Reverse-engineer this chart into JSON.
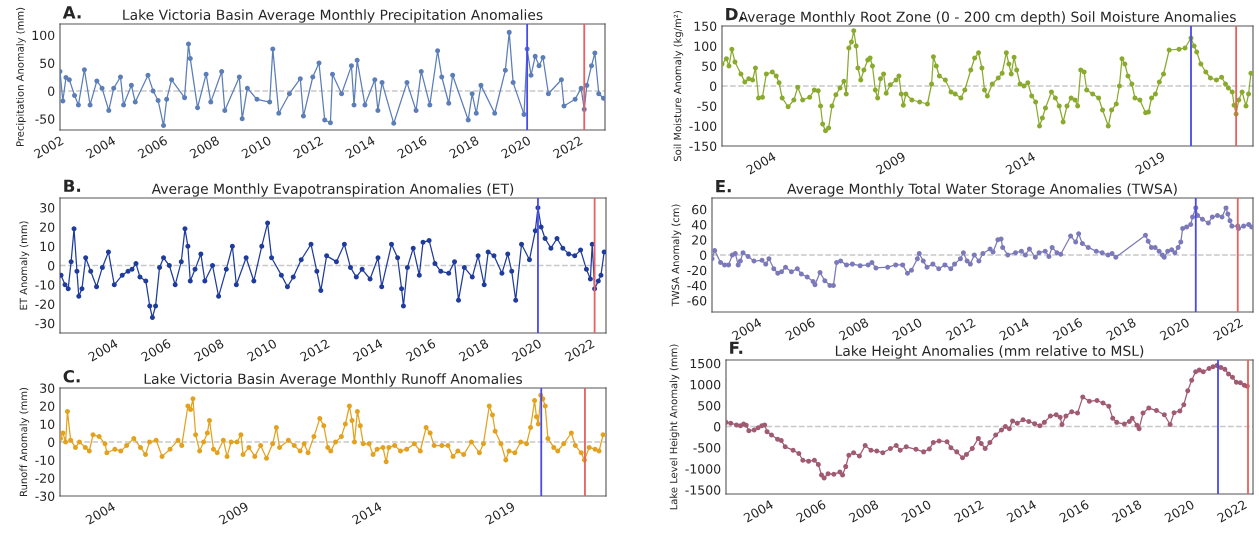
{
  "chart_data": [
    {
      "type": "line",
      "title": "Lake Victoria Basin Average Monthly Precipitation Anomalies",
      "ylabel": "Precipitation Anomaly (mm)",
      "annotations": [
        "A."
      ],
      "marker": "circle",
      "line_style": "solid",
      "xlim": [
        2002,
        2023
      ],
      "xticks": [
        2002,
        2004,
        2006,
        2008,
        2010,
        2012,
        2014,
        2016,
        2018,
        2020,
        2022
      ],
      "ylim": [
        -70,
        120
      ],
      "yticks": [
        -50,
        0,
        50,
        100
      ],
      "x": [
        2002.0,
        2002.11,
        2002.23,
        2002.36,
        2002.56,
        2002.71,
        2002.94,
        2003.16,
        2003.42,
        2003.62,
        2003.88,
        2004.07,
        2004.33,
        2004.45,
        2004.75,
        2004.9,
        2005.39,
        2005.59,
        2005.78,
        2005.99,
        2006.11,
        2006.3,
        2006.8,
        2006.95,
        2007.02,
        2007.3,
        2007.63,
        2007.81,
        2008.23,
        2008.35,
        2008.91,
        2009.02,
        2009.22,
        2009.59,
        2010.08,
        2010.2,
        2010.43,
        2010.84,
        2011.26,
        2011.38,
        2011.74,
        2011.98,
        2012.2,
        2012.42,
        2012.5,
        2012.85,
        2013.23,
        2013.33,
        2013.45,
        2013.75,
        2014.13,
        2014.25,
        2014.41,
        2014.86,
        2015.37,
        2015.72,
        2015.92,
        2016.25,
        2016.55,
        2016.71,
        2016.98,
        2017.13,
        2017.73,
        2017.88,
        2018.04,
        2018.22,
        2018.75,
        2019.16,
        2019.31,
        2019.46,
        2019.88,
        2020.0,
        2020.15,
        2020.31,
        2020.46,
        2020.61,
        2020.82,
        2021.32,
        2021.42,
        2021.85,
        2022.08,
        2022.2,
        2022.3,
        2022.48,
        2022.61,
        2022.76,
        2022.94
      ],
      "series": [
        {
          "color": "#5b7db8",
          "values": [
            35,
            -18,
            24,
            20,
            -8,
            -25,
            38,
            -25,
            18,
            5,
            -35,
            5,
            25,
            -25,
            10,
            -20,
            28,
            0,
            -17,
            -62,
            -15,
            20,
            -12,
            84,
            58,
            -30,
            30,
            -20,
            35,
            -35,
            25,
            -50,
            5,
            -15,
            -20,
            75,
            -40,
            -5,
            22,
            -45,
            25,
            50,
            -52,
            -57,
            30,
            -5,
            45,
            -25,
            55,
            -25,
            20,
            -35,
            15,
            -58,
            15,
            -35,
            35,
            -25,
            72,
            25,
            -22,
            28,
            -52,
            -5,
            -40,
            10,
            -40,
            37,
            105,
            15,
            -42,
            75,
            28,
            62,
            45,
            60,
            -5,
            20,
            -27,
            -15,
            5,
            -33,
            10,
            45,
            68,
            -5,
            -13
          ]
        }
      ],
      "ref_lines": [
        {
          "axis": "y",
          "value": 0,
          "color": "#c8c8c8",
          "line_style": "dashed"
        },
        {
          "axis": "x",
          "value": 2020.0,
          "color": "#4a4ae8"
        },
        {
          "axis": "x",
          "value": 2022.2,
          "color": "#e86060"
        }
      ]
    },
    {
      "type": "line",
      "title": "Average Monthly Evapotranspiration Anomalies (ET)",
      "ylabel": "ET Anomaly (mm)",
      "annotations": [
        "B."
      ],
      "marker": "circle",
      "line_style": "solid",
      "xlim": [
        2001.95,
        2022.57
      ],
      "xticks": [
        2004,
        2006,
        2008,
        2010,
        2012,
        2014,
        2016,
        2018,
        2020,
        2022
      ],
      "ylim": [
        -35,
        35
      ],
      "yticks": [
        -30,
        -20,
        -10,
        0,
        10,
        20,
        30
      ],
      "x": [
        2001.99,
        2002.14,
        2002.26,
        2002.37,
        2002.48,
        2002.59,
        2002.66,
        2002.78,
        2002.92,
        2003.11,
        2003.33,
        2003.55,
        2003.78,
        2004.0,
        2004.3,
        2004.52,
        2004.67,
        2004.82,
        2004.97,
        2005.19,
        2005.34,
        2005.44,
        2005.56,
        2005.71,
        2005.86,
        2006.08,
        2006.3,
        2006.53,
        2006.67,
        2006.78,
        2006.87,
        2007.05,
        2007.27,
        2007.42,
        2007.71,
        2007.94,
        2008.23,
        2008.46,
        2008.61,
        2008.98,
        2009.27,
        2009.57,
        2009.79,
        2009.94,
        2010.31,
        2010.54,
        2010.76,
        2011.06,
        2011.43,
        2011.65,
        2011.8,
        2012.02,
        2012.39,
        2012.69,
        2012.92,
        2013.14,
        2013.36,
        2013.66,
        2013.96,
        2014.1,
        2014.47,
        2014.7,
        2014.85,
        2014.92,
        2015.07,
        2015.29,
        2015.52,
        2015.66,
        2015.89,
        2016.11,
        2016.33,
        2016.63,
        2016.85,
        2017.0,
        2017.22,
        2017.52,
        2017.74,
        2017.97,
        2018.12,
        2018.34,
        2018.64,
        2018.86,
        2019.01,
        2019.16,
        2019.38,
        2019.68,
        2019.9,
        2020.0,
        2020.12,
        2020.27,
        2020.49,
        2020.72,
        2020.94,
        2021.16,
        2021.39,
        2021.61,
        2021.83,
        2021.98,
        2022.05,
        2022.14,
        2022.28,
        2022.38,
        2022.5
      ],
      "series": [
        {
          "color": "#1f3c9c",
          "values": [
            -5,
            -10,
            -12,
            2,
            19,
            -3,
            -16,
            -12,
            4,
            -3,
            -11,
            -1,
            7,
            -10,
            -5,
            -3,
            -2,
            1,
            -6,
            -8,
            -21,
            -27,
            -21,
            -1,
            4,
            0,
            -10,
            2,
            19,
            10,
            -8,
            -2,
            6,
            -8,
            0,
            -16,
            -2,
            10,
            -10,
            4,
            -8,
            10,
            22,
            4,
            -5,
            -11,
            -6,
            3,
            11,
            -3,
            -13,
            5,
            2,
            11,
            -1,
            -6,
            -2,
            -7,
            4,
            -11,
            11,
            4,
            -12,
            -21,
            -1,
            9,
            -5,
            12,
            13,
            1,
            -3,
            -4,
            2,
            -18,
            -1,
            -6,
            5,
            -10,
            7,
            5,
            -4,
            6,
            -3,
            -18,
            11,
            3,
            18,
            30,
            20,
            14,
            9,
            14,
            9,
            6,
            5,
            8,
            -2,
            -7,
            11,
            -12,
            -8,
            -5,
            7
          ]
        }
      ],
      "ref_lines": [
        {
          "axis": "y",
          "value": 0,
          "color": "#c8c8c8",
          "line_style": "dashed"
        },
        {
          "axis": "x",
          "value": 2020.0,
          "color": "#4a4ae8"
        },
        {
          "axis": "x",
          "value": 2022.14,
          "color": "#e86060"
        }
      ]
    },
    {
      "type": "line",
      "title": "Lake Victoria Basin Average Monthly Runoff Anomalies",
      "ylabel": "Runoff Anomaly (mm)",
      "annotations": [
        "C."
      ],
      "marker": "circle",
      "line_style": "solid",
      "xlim": [
        2002.06,
        2022.55
      ],
      "xticks": [
        2004,
        2009,
        2014,
        2019
      ],
      "ylim": [
        -30,
        30
      ],
      "yticks": [
        -30,
        -20,
        -10,
        0,
        10,
        20,
        30
      ],
      "x": [
        2002.08,
        2002.17,
        2002.27,
        2002.34,
        2002.46,
        2002.64,
        2002.79,
        2003.01,
        2003.16,
        2003.3,
        2003.53,
        2003.75,
        2003.82,
        2004.12,
        2004.34,
        2004.56,
        2004.83,
        2005.08,
        2005.27,
        2005.42,
        2005.67,
        2005.89,
        2006.19,
        2006.49,
        2006.63,
        2006.86,
        2006.96,
        2007.05,
        2007.15,
        2007.3,
        2007.45,
        2007.59,
        2007.67,
        2007.82,
        2007.96,
        2008.19,
        2008.33,
        2008.48,
        2008.7,
        2008.85,
        2008.93,
        2009.15,
        2009.37,
        2009.59,
        2009.81,
        2010.04,
        2010.18,
        2010.3,
        2010.63,
        2010.85,
        2011.07,
        2011.22,
        2011.37,
        2011.59,
        2011.81,
        2011.96,
        2012.11,
        2012.22,
        2012.4,
        2012.62,
        2012.77,
        2012.92,
        2013.02,
        2013.11,
        2013.22,
        2013.33,
        2013.44,
        2013.66,
        2013.81,
        2013.96,
        2014.18,
        2014.3,
        2014.4,
        2014.62,
        2014.84,
        2015.07,
        2015.36,
        2015.58,
        2015.8,
        2015.95,
        2016.1,
        2016.39,
        2016.62,
        2016.81,
        2016.99,
        2017.21,
        2017.5,
        2017.8,
        2017.95,
        2018.17,
        2018.29,
        2018.39,
        2018.61,
        2018.79,
        2018.91,
        2019.13,
        2019.35,
        2019.57,
        2019.72,
        2019.87,
        2019.94,
        2020.01,
        2020.1,
        2020.18,
        2020.27,
        2020.37,
        2020.59,
        2020.74,
        2020.96,
        2021.25,
        2021.4,
        2021.62,
        2021.74,
        2021.92,
        2022.14,
        2022.29,
        2022.44
      ],
      "series": [
        {
          "color": "#e3a21e",
          "values": [
            2,
            5,
            0,
            17,
            1,
            -3,
            0,
            -3,
            -5,
            4,
            3,
            -1,
            -6,
            -4,
            -5,
            -2,
            2,
            -3,
            -7,
            0,
            1,
            -8,
            -4,
            1,
            -2,
            20,
            18,
            24,
            4,
            -5,
            0,
            5,
            12,
            -4,
            -6,
            1,
            -8,
            0,
            0,
            4,
            -7,
            -3,
            -8,
            -2,
            -9,
            -1,
            8,
            -3,
            1,
            -2,
            -5,
            -1,
            -6,
            3,
            13,
            9,
            -3,
            -5,
            0,
            3,
            10,
            20,
            12,
            0,
            17,
            9,
            -1,
            -1,
            -7,
            -4,
            -3,
            -11,
            -3,
            -2,
            -5,
            -4,
            -1,
            -5,
            8,
            5,
            -2,
            -2,
            -2,
            -8,
            -5,
            -7,
            0,
            -6,
            -1,
            20,
            15,
            6,
            -1,
            -10,
            -5,
            -6,
            0,
            -1,
            8,
            23,
            14,
            10,
            26,
            24,
            20,
            2,
            -3,
            -5,
            -1,
            5,
            -2,
            -6,
            -10,
            -3,
            -4,
            -5,
            4
          ]
        }
      ],
      "ref_lines": [
        {
          "axis": "y",
          "value": 0,
          "color": "#c8c8c8",
          "line_style": "dashed"
        },
        {
          "axis": "x",
          "value": 2020.12,
          "color": "#4a4ae8"
        },
        {
          "axis": "x",
          "value": 2021.76,
          "color": "#e86060"
        }
      ]
    },
    {
      "type": "line",
      "title": "Average Monthly Root Zone (0 - 200 cm depth) Soil Moisture Anomalies",
      "ylabel": "Soil Moisture Anomaly (kg/m²)",
      "annotations": [
        "D."
      ],
      "marker": "circle",
      "line_style": "solid",
      "xlim": [
        2002.06,
        2022.53
      ],
      "xticks": [
        2004,
        2009,
        2014,
        2019
      ],
      "ylim": [
        -150,
        150
      ],
      "yticks": [
        -150,
        -100,
        -50,
        0,
        50,
        100,
        150
      ],
      "x": [
        2002.06,
        2002.23,
        2002.33,
        2002.44,
        2002.56,
        2002.79,
        2002.94,
        2003.09,
        2003.24,
        2003.35,
        2003.47,
        2003.62,
        2003.77,
        2004.0,
        2004.15,
        2004.26,
        2004.38,
        2004.61,
        2004.83,
        2004.98,
        2005.17,
        2005.44,
        2005.62,
        2005.77,
        2005.86,
        2005.94,
        2006.05,
        2006.17,
        2006.3,
        2006.45,
        2006.61,
        2006.76,
        2006.85,
        2006.95,
        2007.05,
        2007.14,
        2007.23,
        2007.3,
        2007.41,
        2007.53,
        2007.68,
        2007.77,
        2007.86,
        2007.97,
        2008.06,
        2008.17,
        2008.29,
        2008.39,
        2008.55,
        2008.77,
        2008.88,
        2008.97,
        2009.05,
        2009.15,
        2009.38,
        2009.68,
        2009.98,
        2010.14,
        2010.21,
        2010.32,
        2010.44,
        2010.67,
        2010.89,
        2011.05,
        2011.27,
        2011.42,
        2011.65,
        2011.8,
        2011.95,
        2012.08,
        2012.18,
        2012.29,
        2012.48,
        2012.71,
        2012.86,
        2013.02,
        2013.12,
        2013.21,
        2013.32,
        2013.42,
        2013.55,
        2013.7,
        2013.85,
        2014.0,
        2014.15,
        2014.3,
        2014.41,
        2014.53,
        2014.76,
        2014.91,
        2015.06,
        2015.21,
        2015.36,
        2015.52,
        2015.67,
        2015.77,
        2015.89,
        2016.02,
        2016.12,
        2016.35,
        2016.58,
        2016.73,
        2016.95,
        2017.08,
        2017.26,
        2017.38,
        2017.48,
        2017.59,
        2017.71,
        2017.86,
        2017.98,
        2018.17,
        2018.39,
        2018.5,
        2018.62,
        2018.77,
        2018.92,
        2019.08,
        2019.3,
        2019.68,
        2019.91,
        2020.14,
        2020.26,
        2020.36,
        2020.52,
        2020.71,
        2020.89,
        2021.12,
        2021.32,
        2021.47,
        2021.58,
        2021.73,
        2021.8,
        2021.88,
        2021.98,
        2022.11,
        2022.26,
        2022.36,
        2022.45
      ],
      "series": [
        {
          "color": "#8aaa2e",
          "values": [
            55,
            68,
            50,
            92,
            60,
            30,
            10,
            18,
            15,
            45,
            -30,
            -28,
            30,
            35,
            25,
            8,
            -30,
            -52,
            -35,
            -3,
            -35,
            -28,
            -10,
            -12,
            -50,
            -95,
            -112,
            -105,
            -50,
            -22,
            -5,
            12,
            -20,
            95,
            110,
            138,
            100,
            45,
            15,
            40,
            65,
            70,
            50,
            -10,
            -30,
            18,
            30,
            -18,
            3,
            15,
            25,
            -20,
            -48,
            -20,
            -35,
            -40,
            -45,
            5,
            73,
            50,
            25,
            15,
            -15,
            -20,
            -30,
            -10,
            40,
            70,
            83,
            45,
            -10,
            -25,
            5,
            20,
            32,
            83,
            55,
            30,
            72,
            40,
            5,
            0,
            8,
            -25,
            -40,
            -100,
            -80,
            -55,
            -15,
            -30,
            -50,
            -90,
            -50,
            -30,
            -35,
            -50,
            40,
            35,
            -10,
            -20,
            -30,
            -60,
            -100,
            -60,
            -45,
            0,
            68,
            55,
            25,
            5,
            -30,
            -35,
            -67,
            -65,
            -30,
            -20,
            10,
            30,
            90,
            92,
            95,
            120,
            100,
            85,
            55,
            35,
            20,
            15,
            22,
            5,
            -5,
            -15,
            -48,
            -70,
            -35,
            -15,
            -50,
            -20,
            32
          ]
        }
      ],
      "ref_lines": [
        {
          "axis": "y",
          "value": 0,
          "color": "#c8c8c8",
          "line_style": "dashed"
        },
        {
          "axis": "x",
          "value": 2020.14,
          "color": "#4a4ae8"
        },
        {
          "axis": "x",
          "value": 2021.88,
          "color": "#e86060"
        }
      ]
    },
    {
      "type": "line",
      "title": "Average Monthly Total Water Storage Anomalies (TWSA)",
      "ylabel": "TWSA Anomaly (cm)",
      "annotations": [
        "E."
      ],
      "marker": "circle",
      "line_style": "solid",
      "xlim": [
        2002.28,
        2022.51
      ],
      "xticks": [
        2004,
        2006,
        2008,
        2010,
        2012,
        2014,
        2016,
        2018,
        2020,
        2022
      ],
      "ylim": [
        -75,
        75
      ],
      "yticks": [
        -60,
        -40,
        -20,
        0,
        20,
        40,
        60
      ],
      "x": [
        2002.28,
        2002.38,
        2002.6,
        2002.75,
        2002.9,
        2003.04,
        2003.15,
        2003.26,
        2003.34,
        2003.44,
        2003.63,
        2003.85,
        2004.15,
        2004.29,
        2004.41,
        2004.59,
        2004.74,
        2004.88,
        2005.03,
        2005.25,
        2005.47,
        2005.62,
        2005.84,
        2006.06,
        2006.13,
        2006.32,
        2006.5,
        2006.69,
        2006.82,
        2006.94,
        2007.09,
        2007.31,
        2007.53,
        2007.82,
        2008.12,
        2008.26,
        2008.41,
        2008.85,
        2009.15,
        2009.41,
        2009.59,
        2009.74,
        2009.96,
        2010.03,
        2010.18,
        2010.32,
        2010.54,
        2010.76,
        2010.99,
        2011.21,
        2011.35,
        2011.57,
        2011.68,
        2011.82,
        2011.94,
        2012.09,
        2012.26,
        2012.41,
        2012.68,
        2012.79,
        2012.97,
        2013.09,
        2013.15,
        2013.34,
        2013.63,
        2013.85,
        2014.0,
        2014.15,
        2014.37,
        2014.51,
        2014.74,
        2014.88,
        2015.0,
        2015.18,
        2015.32,
        2015.69,
        2015.88,
        2015.99,
        2016.13,
        2016.35,
        2016.65,
        2016.87,
        2017.09,
        2017.24,
        2017.38,
        2018.49,
        2018.59,
        2018.71,
        2018.85,
        2019.0,
        2019.12,
        2019.19,
        2019.32,
        2019.47,
        2019.59,
        2019.71,
        2019.81,
        2019.88,
        2020.03,
        2020.18,
        2020.25,
        2020.37,
        2020.44,
        2020.62,
        2020.84,
        2020.99,
        2021.18,
        2021.35,
        2021.5,
        2021.57,
        2021.65,
        2021.72,
        2021.94,
        2021.97,
        2022.16,
        2022.35,
        2022.46
      ],
      "series": [
        {
          "color": "#7b79b9",
          "values": [
            -5,
            6,
            -10,
            -13,
            -13,
            0,
            2,
            -13,
            -8,
            3,
            -2,
            -8,
            -7,
            -12,
            -5,
            -18,
            -24,
            -22,
            -16,
            -22,
            -18,
            -25,
            -29,
            -35,
            -39,
            -23,
            -34,
            -40,
            -40,
            -10,
            -8,
            -13,
            -12,
            -14,
            -13,
            -10,
            -17,
            -16,
            -13,
            -13,
            -24,
            -20,
            -5,
            2,
            -8,
            -16,
            -12,
            -18,
            -13,
            -18,
            -12,
            -5,
            3,
            -8,
            -12,
            0,
            -8,
            2,
            8,
            4,
            20,
            21,
            10,
            0,
            3,
            5,
            0,
            8,
            -3,
            3,
            5,
            -2,
            10,
            3,
            1,
            25,
            17,
            28,
            15,
            10,
            5,
            3,
            0,
            2,
            -3,
            26,
            18,
            10,
            10,
            5,
            0,
            -3,
            5,
            7,
            3,
            10,
            17,
            35,
            37,
            40,
            50,
            62,
            52,
            47,
            42,
            50,
            52,
            50,
            62,
            54,
            45,
            38,
            38,
            35,
            38,
            40,
            37
          ]
        }
      ],
      "ref_lines": [
        {
          "axis": "y",
          "value": 0,
          "color": "#c8c8c8",
          "line_style": "dashed"
        },
        {
          "axis": "x",
          "value": 2020.37,
          "color": "#4a4ae8"
        },
        {
          "axis": "x",
          "value": 2021.94,
          "color": "#e86060"
        }
      ]
    },
    {
      "type": "line",
      "title": "Lake Height Anomalies (mm relative to MSL)",
      "ylabel": "Lake Level Height Anomaly (mm)",
      "annotations": [
        "F."
      ],
      "marker": "circle",
      "line_style": "solid",
      "xlim": [
        2002.34,
        2022.37
      ],
      "xticks": [
        2004,
        2006,
        2008,
        2010,
        2012,
        2014,
        2016,
        2018,
        2020,
        2022
      ],
      "ylim": [
        -1600,
        1580
      ],
      "yticks": [
        -1500,
        -1000,
        -500,
        0,
        500,
        1000,
        1500
      ],
      "x": [
        2002.34,
        2002.52,
        2002.74,
        2002.89,
        2003.01,
        2003.11,
        2003.21,
        2003.41,
        2003.56,
        2003.7,
        2003.81,
        2003.9,
        2004.07,
        2004.3,
        2004.44,
        2004.59,
        2004.89,
        2005.11,
        2005.26,
        2005.48,
        2005.7,
        2005.85,
        2005.97,
        2006.07,
        2006.22,
        2006.44,
        2006.67,
        2006.77,
        2006.89,
        2007.01,
        2007.19,
        2007.41,
        2007.63,
        2007.85,
        2008.07,
        2008.3,
        2008.59,
        2008.81,
        2008.96,
        2009.19,
        2009.56,
        2009.85,
        2010.07,
        2010.22,
        2010.44,
        2010.74,
        2010.89,
        2011.11,
        2011.33,
        2011.48,
        2011.7,
        2011.93,
        2012.04,
        2012.19,
        2012.37,
        2012.59,
        2012.81,
        2012.96,
        2013.11,
        2013.23,
        2013.41,
        2013.63,
        2013.85,
        2014.07,
        2014.27,
        2014.44,
        2014.67,
        2014.89,
        2015.04,
        2015.11,
        2015.26,
        2015.48,
        2015.7,
        2015.9,
        2016.15,
        2016.44,
        2016.67,
        2016.89,
        2017.04,
        2017.19,
        2017.48,
        2017.67,
        2017.78,
        2017.96,
        2018.04,
        2018.19,
        2018.41,
        2018.7,
        2019.0,
        2019.22,
        2019.37,
        2019.59,
        2019.74,
        2019.89,
        2020.04,
        2020.19,
        2020.33,
        2020.48,
        2020.7,
        2020.85,
        2021.0,
        2021.15,
        2021.3,
        2021.44,
        2021.59,
        2021.74,
        2021.89,
        2022.04,
        2022.15
      ],
      "series": [
        {
          "color": "#a05a72",
          "values": [
            100,
            80,
            40,
            20,
            60,
            30,
            -100,
            -80,
            -30,
            20,
            40,
            -120,
            -200,
            -300,
            -330,
            -480,
            -560,
            -640,
            -800,
            -820,
            -800,
            -900,
            -1150,
            -1220,
            -1120,
            -1130,
            -1080,
            -1150,
            -950,
            -680,
            -620,
            -700,
            -450,
            -560,
            -580,
            -620,
            -520,
            -450,
            -560,
            -480,
            -540,
            -600,
            -530,
            -380,
            -340,
            -360,
            -500,
            -600,
            -740,
            -660,
            -520,
            -280,
            -400,
            -520,
            -380,
            -200,
            -80,
            0,
            -50,
            130,
            80,
            160,
            120,
            70,
            20,
            100,
            250,
            280,
            220,
            50,
            250,
            350,
            320,
            700,
            600,
            620,
            560,
            480,
            200,
            100,
            60,
            120,
            200,
            30,
            -50,
            320,
            440,
            380,
            280,
            50,
            330,
            370,
            520,
            850,
            1100,
            1300,
            1340,
            1300,
            1380,
            1420,
            1450,
            1400,
            1360,
            1250,
            1170,
            1050,
            1040,
            980,
            960
          ]
        }
      ],
      "ref_lines": [
        {
          "axis": "y",
          "value": 0,
          "color": "#c8c8c8",
          "line_style": "dashed"
        },
        {
          "axis": "x",
          "value": 2021.04,
          "color": "#4a4ae8"
        },
        {
          "axis": "x",
          "value": 2022.18,
          "color": "#e86060"
        }
      ]
    }
  ]
}
